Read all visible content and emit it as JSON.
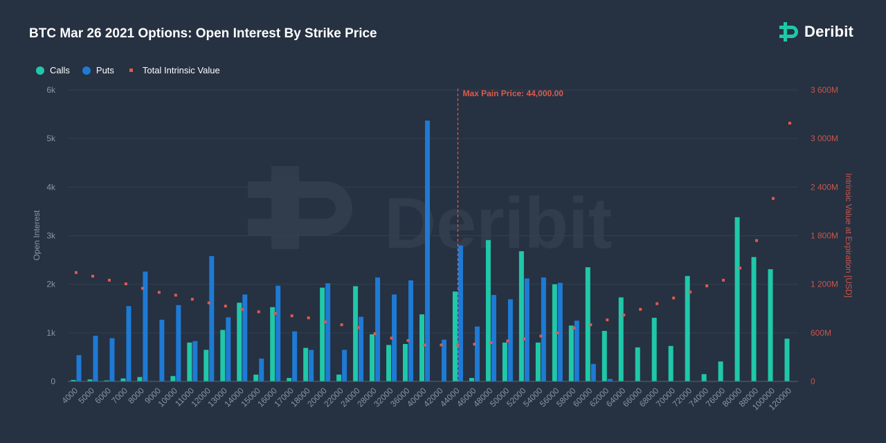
{
  "header": {
    "title": "BTC Mar 26 2021 Options: Open Interest By Strike Price",
    "brand": "Deribit",
    "watermark": "Deribit"
  },
  "legend": {
    "calls": "Calls",
    "puts": "Puts",
    "intrinsic": "Total Intrinsic Value"
  },
  "colors": {
    "calls": "#1fc8a8",
    "puts": "#1e7ad4",
    "intrinsic": "#e05b4b",
    "background": "#263142"
  },
  "chart_data": {
    "type": "bar",
    "title": "BTC Mar 26 2021 Options: Open Interest By Strike Price",
    "xlabel": "",
    "ylabel": "Open Interest",
    "y2label": "Intrinsic Value at Expiration [USD]",
    "ylim": [
      0,
      6000
    ],
    "y2lim": [
      0,
      3600
    ],
    "yticks": [
      "0",
      "1k",
      "2k",
      "3k",
      "4k",
      "5k",
      "6k"
    ],
    "y2ticks": [
      "0",
      "600M",
      "1 200M",
      "1 800M",
      "2 400M",
      "3 000M",
      "3 600M"
    ],
    "categories": [
      "4000",
      "5000",
      "6000",
      "7000",
      "8000",
      "9000",
      "10000",
      "11000",
      "12000",
      "13000",
      "14000",
      "15000",
      "16000",
      "17000",
      "18000",
      "20000",
      "22000",
      "24000",
      "28000",
      "32000",
      "36000",
      "40000",
      "42000",
      "44000",
      "46000",
      "48000",
      "50000",
      "52000",
      "54000",
      "56000",
      "58000",
      "60000",
      "62000",
      "64000",
      "66000",
      "68000",
      "70000",
      "72000",
      "74000",
      "76000",
      "80000",
      "88000",
      "100000",
      "120000"
    ],
    "series": [
      {
        "name": "Calls",
        "values": [
          30,
          40,
          20,
          60,
          90,
          0,
          110,
          800,
          650,
          1060,
          1620,
          140,
          1530,
          70,
          690,
          1930,
          140,
          1960,
          970,
          750,
          770,
          1380,
          0,
          1850,
          70,
          2910,
          800,
          2680,
          800,
          2000,
          1150,
          2350,
          1040,
          1730,
          700,
          1310,
          730,
          2170,
          150,
          410,
          3380,
          2560,
          2310,
          880
        ]
      },
      {
        "name": "Puts",
        "values": [
          540,
          940,
          890,
          1550,
          2260,
          1270,
          1570,
          830,
          2580,
          1320,
          1790,
          470,
          1970,
          1030,
          650,
          2020,
          650,
          1330,
          2140,
          1790,
          2080,
          5370,
          860,
          2800,
          1130,
          1780,
          1690,
          2120,
          2140,
          2030,
          1250,
          360,
          50,
          0,
          0,
          0,
          0,
          0,
          0,
          0,
          0,
          0,
          0,
          0
        ]
      },
      {
        "name": "Total Intrinsic Value",
        "values": [
          1345,
          1300,
          1250,
          1205,
          1150,
          1100,
          1065,
          1015,
          970,
          930,
          890,
          860,
          840,
          810,
          785,
          735,
          700,
          665,
          590,
          535,
          505,
          450,
          450,
          450,
          460,
          480,
          500,
          525,
          560,
          600,
          660,
          700,
          760,
          820,
          890,
          960,
          1030,
          1105,
          1180,
          1250,
          1400,
          1740,
          2260,
          3190
        ]
      }
    ],
    "annotation": {
      "label": "Max Pain Price: 44,000.00",
      "category": "44000"
    }
  }
}
